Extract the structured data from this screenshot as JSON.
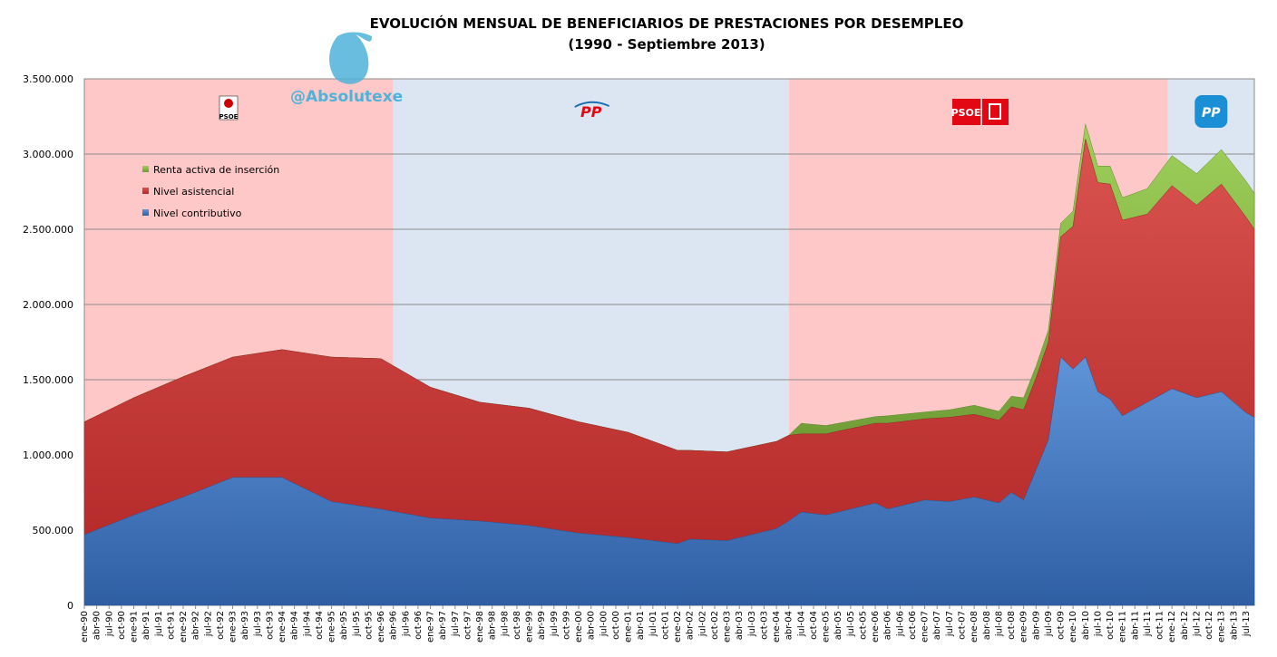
{
  "title_line1": "EVOLUCIÓN MENSUAL DE BENEFICIARIOS DE PRESTACIONES POR DESEMPLEO",
  "title_line2": "(1990 - Septiembre 2013)",
  "watermark_handle": "@Absolutexe",
  "colors": {
    "contributivo": "#4b7cc4",
    "asistencial": "#c93a3a",
    "renta": "#8cb84a",
    "psoe_band": "#ffc8c8",
    "pp_band": "#dce6f2",
    "psoe_logo": "#e30613",
    "pp_logo": "#1b8fd6"
  },
  "periods": [
    {
      "party": "PSOE",
      "logo_text": "PSOE",
      "from": "ene-90",
      "to": "abr-96"
    },
    {
      "party": "PP",
      "logo_text": "PP",
      "from": "abr-96",
      "to": "abr-04"
    },
    {
      "party": "PSOE",
      "logo_text": "PSOE",
      "from": "abr-04",
      "to": "dic-11"
    },
    {
      "party": "PP",
      "logo_text": "PP",
      "from": "dic-11",
      "to": "sep-13"
    }
  ],
  "chart_data": {
    "type": "area",
    "stacked": true,
    "x_start": "ene-90",
    "x_end": "sep-13",
    "ylim": [
      0,
      3500000
    ],
    "yticks": [
      "0",
      "500.000",
      "1.000.000",
      "1.500.000",
      "2.000.000",
      "2.500.000",
      "3.000.000",
      "3.500.000"
    ],
    "xticks": [
      "ene-90",
      "abr-90",
      "jul-90",
      "oct-90",
      "ene-91",
      "abr-91",
      "jul-91",
      "oct-91",
      "ene-92",
      "abr-92",
      "jul-92",
      "oct-92",
      "ene-93",
      "abr-93",
      "jul-93",
      "oct-93",
      "ene-94",
      "abr-94",
      "jul-94",
      "oct-94",
      "ene-95",
      "abr-95",
      "jul-95",
      "oct-95",
      "ene-96",
      "abr-96",
      "jul-96",
      "oct-96",
      "ene-97",
      "abr-97",
      "jul-97",
      "oct-97",
      "ene-98",
      "abr-98",
      "jul-98",
      "oct-98",
      "ene-99",
      "abr-99",
      "jul-99",
      "oct-99",
      "ene-00",
      "abr-00",
      "jul-00",
      "oct-00",
      "ene-01",
      "abr-01",
      "jul-01",
      "oct-01",
      "ene-02",
      "abr-02",
      "jul-02",
      "oct-02",
      "ene-03",
      "abr-03",
      "jul-03",
      "oct-03",
      "ene-04",
      "abr-04",
      "jul-04",
      "oct-04",
      "ene-05",
      "abr-05",
      "jul-05",
      "oct-05",
      "ene-06",
      "abr-06",
      "jul-06",
      "oct-06",
      "ene-07",
      "abr-07",
      "jul-07",
      "oct-07",
      "ene-08",
      "abr-08",
      "jul-08",
      "oct-08",
      "ene-09",
      "abr-09",
      "jul-09",
      "oct-09",
      "ene-10",
      "abr-10",
      "jul-10",
      "oct-10",
      "ene-11",
      "abr-11",
      "jul-11",
      "oct-11",
      "ene-12",
      "abr-12",
      "jul-12",
      "oct-12",
      "ene-13",
      "abr-13",
      "jul-13"
    ],
    "grid": true,
    "legend_position": "top-left",
    "series": [
      {
        "name": "Nivel contributivo",
        "color": "#4b7cc4",
        "values": [
          470000,
          600000,
          720000,
          850000,
          850000,
          690000,
          640000,
          580000,
          560000,
          530000,
          480000,
          450000,
          410000,
          440000,
          430000,
          510000,
          560000,
          620000,
          600000,
          680000,
          640000,
          700000,
          690000,
          720000,
          680000,
          750000,
          700000,
          900000,
          1100000,
          1650000,
          1570000,
          1650000,
          1420000,
          1370000,
          1260000,
          1350000,
          1440000,
          1380000,
          1420000,
          1280000,
          1250000
        ]
      },
      {
        "name": "Nivel asistencial",
        "color": "#c93a3a",
        "values": [
          750000,
          780000,
          800000,
          800000,
          850000,
          960000,
          1000000,
          870000,
          790000,
          780000,
          740000,
          700000,
          620000,
          590000,
          590000,
          580000,
          570000,
          520000,
          540000,
          530000,
          570000,
          540000,
          560000,
          550000,
          550000,
          570000,
          600000,
          610000,
          650000,
          800000,
          950000,
          1450000,
          1390000,
          1430000,
          1300000,
          1250000,
          1350000,
          1280000,
          1380000,
          1300000,
          1250000
        ]
      },
      {
        "name": "Renta activa de inserción",
        "color": "#8cb84a",
        "values": [
          0,
          0,
          0,
          0,
          0,
          0,
          0,
          0,
          0,
          0,
          0,
          0,
          0,
          0,
          0,
          0,
          0,
          70000,
          55000,
          45000,
          50000,
          45000,
          50000,
          60000,
          60000,
          70000,
          80000,
          80000,
          80000,
          90000,
          100000,
          100000,
          110000,
          120000,
          150000,
          170000,
          200000,
          210000,
          230000,
          240000,
          240000
        ]
      }
    ],
    "series_x": [
      "ene-90",
      "ene-91",
      "ene-92",
      "ene-93",
      "ene-94",
      "ene-95",
      "ene-96",
      "ene-97",
      "ene-98",
      "ene-99",
      "ene-00",
      "ene-01",
      "ene-02",
      "abr-02",
      "ene-03",
      "ene-04",
      "abr-04",
      "jul-04",
      "ene-05",
      "ene-06",
      "abr-06",
      "ene-07",
      "jul-07",
      "ene-08",
      "jul-08",
      "oct-08",
      "ene-09",
      "abr-09",
      "jul-09",
      "oct-09",
      "ene-10",
      "abr-10",
      "jul-10",
      "oct-10",
      "ene-11",
      "jul-11",
      "ene-12",
      "jul-12",
      "ene-13",
      "jul-13",
      "sep-13"
    ],
    "legend": [
      "Renta activa de inserción",
      "Nivel asistencial",
      "Nivel contributivo"
    ]
  }
}
